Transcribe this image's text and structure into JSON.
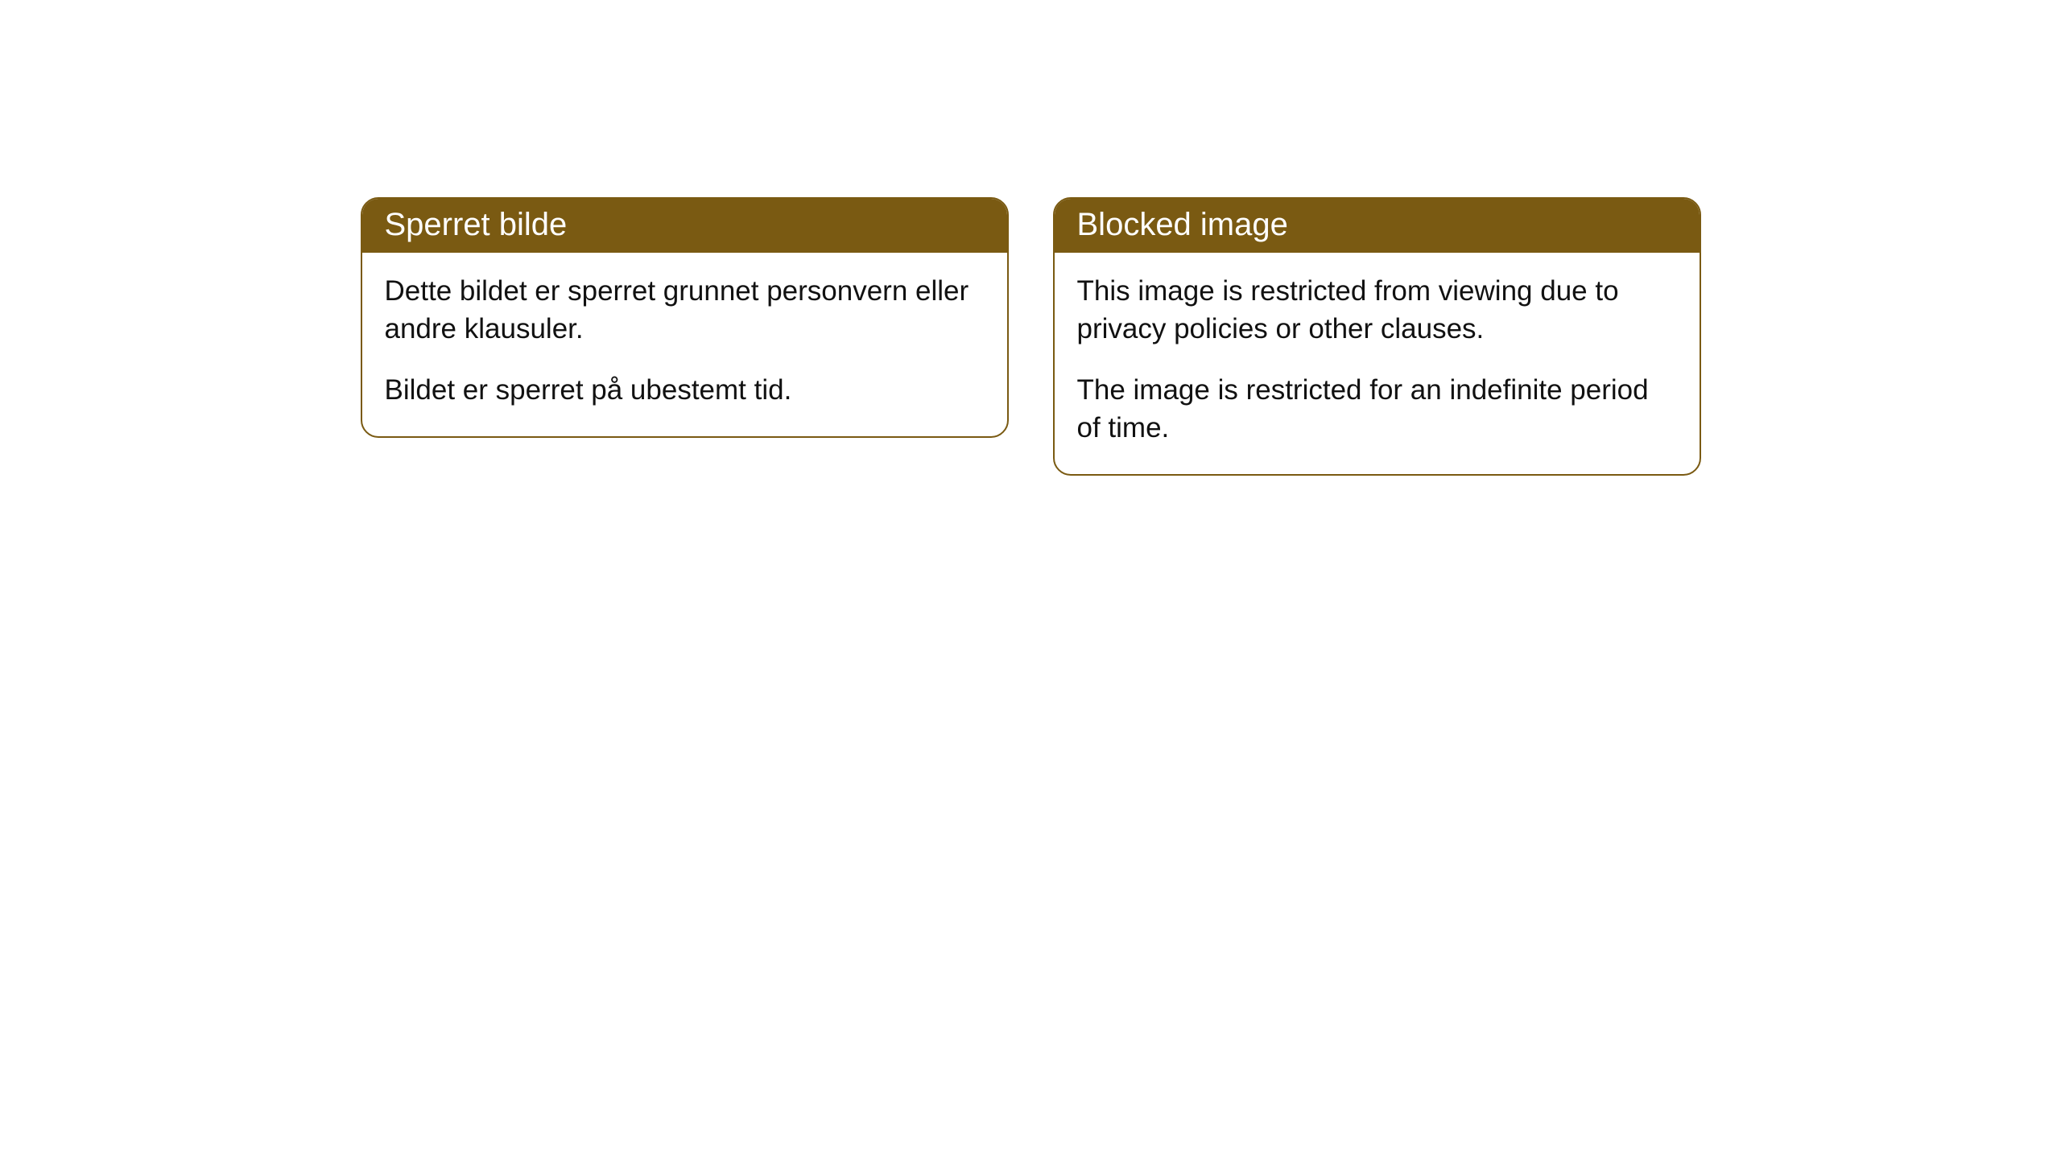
{
  "cards": [
    {
      "header": "Sperret bilde",
      "paragraph1": "Dette bildet er sperret grunnet personvern eller andre klausuler.",
      "paragraph2": "Bildet er sperret på ubestemt tid."
    },
    {
      "header": "Blocked image",
      "paragraph1": "This image is restricted from viewing due to privacy policies or other clauses.",
      "paragraph2": "The image is restricted for an indefinite period of time."
    }
  ],
  "style": {
    "header_background": "#7a5a12",
    "header_text_color": "#ffffff",
    "border_color": "#7a5a12",
    "body_text_color": "#111111",
    "background_color": "#ffffff",
    "border_radius": 22,
    "header_fontsize": 40,
    "body_fontsize": 35
  }
}
